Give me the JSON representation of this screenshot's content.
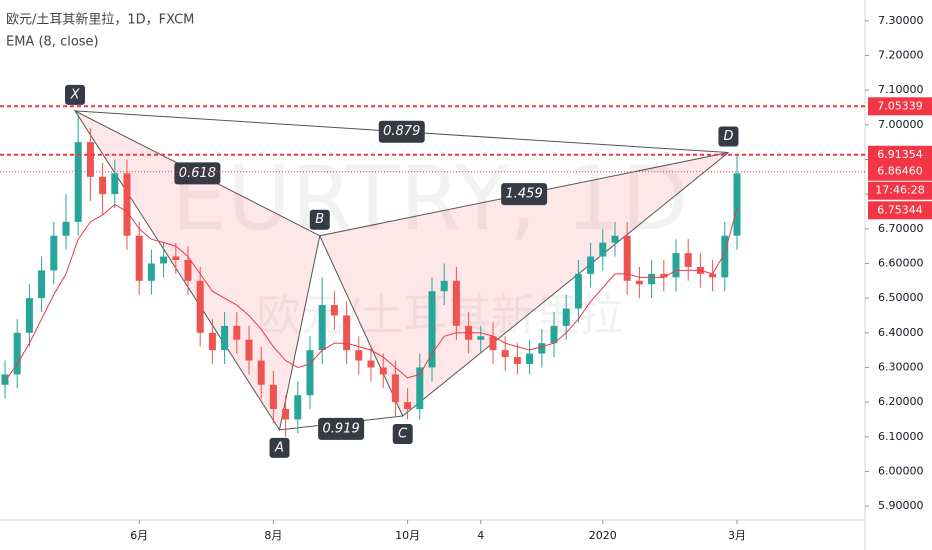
{
  "chart_data": {
    "type": "candlestick",
    "title": "欧元/土耳其新里拉，1D，FXCM",
    "indicator": "EMA (8, close)",
    "watermark": "EURTRY, 1D",
    "watermark_sub": "欧元/土耳其新里拉",
    "categories": [
      null,
      null,
      null,
      null,
      null,
      null,
      null,
      null,
      null,
      null,
      null,
      "6月",
      null,
      null,
      null,
      null,
      null,
      null,
      null,
      null,
      null,
      null,
      "8月",
      null,
      null,
      null,
      null,
      null,
      null,
      null,
      null,
      null,
      null,
      "10月",
      null,
      null,
      null,
      null,
      null,
      "4",
      null,
      null,
      null,
      null,
      null,
      null,
      null,
      null,
      null,
      "2020",
      null,
      null,
      null,
      null,
      null,
      null,
      null,
      null,
      null,
      null,
      "3月"
    ],
    "open": [
      6.25,
      6.28,
      6.4,
      6.5,
      6.58,
      6.68,
      6.72,
      6.95,
      6.85,
      6.8,
      6.86,
      6.68,
      6.55,
      6.6,
      6.62,
      6.61,
      6.55,
      6.4,
      6.35,
      6.42,
      6.38,
      6.32,
      6.25,
      6.18,
      6.15,
      6.22,
      6.35,
      6.48,
      6.45,
      6.35,
      6.32,
      6.3,
      6.28,
      6.2,
      6.18,
      6.3,
      6.52,
      6.55,
      6.42,
      6.38,
      6.39,
      6.35,
      6.33,
      6.31,
      6.34,
      6.37,
      6.42,
      6.47,
      6.57,
      6.62,
      6.66,
      6.68,
      6.55,
      6.54,
      6.57,
      6.56,
      6.63,
      6.59,
      6.57,
      6.56,
      6.68
    ],
    "high": [
      6.32,
      6.44,
      6.54,
      6.62,
      6.72,
      6.8,
      7.03,
      6.99,
      6.89,
      6.9,
      6.9,
      6.72,
      6.64,
      6.66,
      6.66,
      6.65,
      6.59,
      6.44,
      6.46,
      6.46,
      6.42,
      6.36,
      6.29,
      6.22,
      6.26,
      6.39,
      6.56,
      6.52,
      6.49,
      6.39,
      6.36,
      6.34,
      6.32,
      6.24,
      6.34,
      6.56,
      6.6,
      6.59,
      6.46,
      6.42,
      6.43,
      6.39,
      6.37,
      6.38,
      6.41,
      6.46,
      6.51,
      6.61,
      6.66,
      6.7,
      6.72,
      6.72,
      6.59,
      6.61,
      6.61,
      6.67,
      6.67,
      6.63,
      6.61,
      6.72,
      6.91
    ],
    "low": [
      6.21,
      6.24,
      6.36,
      6.46,
      6.54,
      6.64,
      6.68,
      6.78,
      6.74,
      6.76,
      6.64,
      6.51,
      6.51,
      6.56,
      6.57,
      6.51,
      6.36,
      6.31,
      6.31,
      6.34,
      6.28,
      6.21,
      6.14,
      6.1,
      6.11,
      6.18,
      6.31,
      6.41,
      6.31,
      6.28,
      6.26,
      6.24,
      6.16,
      6.15,
      6.15,
      6.26,
      6.48,
      6.38,
      6.34,
      6.34,
      6.31,
      6.29,
      6.28,
      6.28,
      6.3,
      6.33,
      6.38,
      6.43,
      6.53,
      6.58,
      6.62,
      6.51,
      6.5,
      6.5,
      6.52,
      6.52,
      6.55,
      6.53,
      6.52,
      6.52,
      6.64
    ],
    "close": [
      6.28,
      6.4,
      6.5,
      6.58,
      6.68,
      6.72,
      6.95,
      6.85,
      6.8,
      6.86,
      6.68,
      6.55,
      6.6,
      6.62,
      6.61,
      6.55,
      6.4,
      6.35,
      6.42,
      6.38,
      6.32,
      6.25,
      6.18,
      6.15,
      6.22,
      6.35,
      6.48,
      6.45,
      6.35,
      6.32,
      6.3,
      6.28,
      6.2,
      6.18,
      6.3,
      6.52,
      6.55,
      6.42,
      6.38,
      6.39,
      6.35,
      6.33,
      6.31,
      6.34,
      6.37,
      6.42,
      6.47,
      6.57,
      6.62,
      6.66,
      6.68,
      6.55,
      6.54,
      6.57,
      6.56,
      6.63,
      6.59,
      6.57,
      6.56,
      6.68,
      6.86
    ],
    "ema": [
      6.26,
      6.31,
      6.37,
      6.44,
      6.51,
      6.57,
      6.67,
      6.72,
      6.74,
      6.77,
      6.75,
      6.7,
      6.67,
      6.66,
      6.65,
      6.62,
      6.57,
      6.52,
      6.5,
      6.48,
      6.45,
      6.41,
      6.36,
      6.32,
      6.3,
      6.31,
      6.35,
      6.37,
      6.37,
      6.36,
      6.35,
      6.33,
      6.3,
      6.27,
      6.28,
      6.34,
      6.39,
      6.4,
      6.4,
      6.4,
      6.39,
      6.37,
      6.36,
      6.35,
      6.36,
      6.37,
      6.4,
      6.44,
      6.49,
      6.53,
      6.57,
      6.57,
      6.56,
      6.56,
      6.56,
      6.58,
      6.58,
      6.58,
      6.57,
      6.63,
      6.76
    ],
    "up_color": "#26a69a",
    "down_color": "#ef5350",
    "ema_color": "#f23645",
    "ylim": [
      5.86,
      7.36
    ],
    "yticks": [
      {
        "value": 5.9,
        "label": "5.90000"
      },
      {
        "value": 6.0,
        "label": "6.00000"
      },
      {
        "value": 6.1,
        "label": "6.10000"
      },
      {
        "value": 6.2,
        "label": "6.20000"
      },
      {
        "value": 6.3,
        "label": "6.30000"
      },
      {
        "value": 6.4,
        "label": "6.40000"
      },
      {
        "value": 6.5,
        "label": "6.50000"
      },
      {
        "value": 6.6,
        "label": "6.60000"
      },
      {
        "value": 6.7,
        "label": "6.70000"
      },
      {
        "value": 6.8,
        "label": "6.80000"
      },
      {
        "value": 6.9,
        "label": "6.90000"
      },
      {
        "value": 7.0,
        "label": "7.00000"
      },
      {
        "value": 7.1,
        "label": "7.10000"
      },
      {
        "value": 7.2,
        "label": "7.20000"
      },
      {
        "value": 7.3,
        "label": "7.30000"
      }
    ],
    "price_labels": [
      7.05339,
      6.91354,
      {
        "value": 6.8646,
        "label": "6.86460"
      },
      6.75344
    ],
    "price_line_styles": [
      "dashed",
      "dashed",
      "dotted",
      "none"
    ],
    "countdown": "17:46:28",
    "pattern": {
      "points": [
        {
          "label": "X",
          "x": 5.74,
          "y": 7.04
        },
        {
          "label": "A",
          "x": 22.5,
          "y": 6.12
        },
        {
          "label": "B",
          "x": 25.8,
          "y": 6.68
        },
        {
          "label": "C",
          "x": 32.6,
          "y": 6.16
        },
        {
          "label": "D",
          "x": 59.3,
          "y": 6.92
        }
      ],
      "ratios": [
        0.618,
        0.879,
        1.459,
        0.919
      ]
    }
  }
}
